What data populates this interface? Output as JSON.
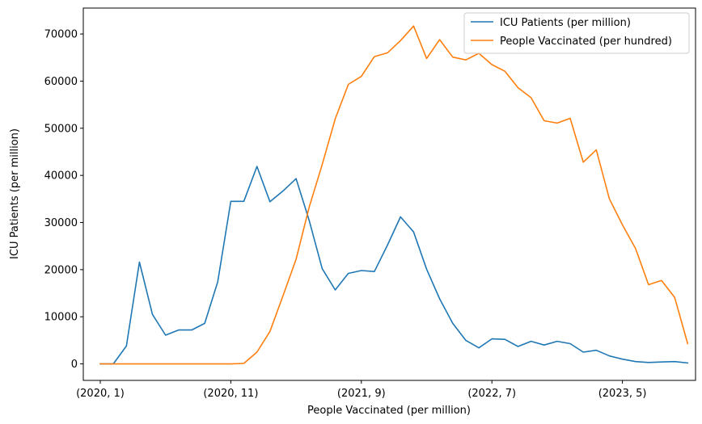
{
  "chart_data": {
    "type": "line",
    "xlabel": "People Vaccinated (per million)",
    "ylabel": "ICU Patients (per million)",
    "x_tick_labels": [
      "(2020, 1)",
      "(2020, 11)",
      "(2021, 9)",
      "(2022, 7)",
      "(2023, 5)"
    ],
    "x_tick_indices": [
      0,
      10,
      20,
      30,
      40
    ],
    "y_ticks": [
      0,
      10000,
      20000,
      30000,
      40000,
      50000,
      60000,
      70000
    ],
    "ylim": [
      -3500,
      75500
    ],
    "xlim": [
      -1.3,
      45.6
    ],
    "grid": false,
    "legend_position": "top-right",
    "series": [
      {
        "name": "ICU Patients (per million)",
        "color": "#1f77b4",
        "values": [
          0,
          0,
          3800,
          21600,
          10500,
          6100,
          7200,
          7200,
          8600,
          17400,
          34500,
          34500,
          41900,
          34400,
          36700,
          39300,
          30500,
          20200,
          15700,
          19200,
          19800,
          19600,
          25200,
          31200,
          28000,
          20100,
          13800,
          8600,
          5000,
          3400,
          5300,
          5200,
          3700,
          4800,
          4000,
          4800,
          4300,
          2500,
          2900,
          1700,
          1000,
          500,
          300,
          400,
          500,
          200
        ]
      },
      {
        "name": "People Vaccinated (per hundred)",
        "color": "#ff7f0e",
        "values": [
          0,
          0,
          0,
          0,
          0,
          0,
          0,
          0,
          0,
          0,
          0,
          100,
          2500,
          6900,
          14500,
          22200,
          33200,
          42300,
          52000,
          59300,
          61000,
          65200,
          66000,
          68600,
          71700,
          64800,
          68800,
          65100,
          64500,
          65900,
          63500,
          62100,
          58600,
          56500,
          51600,
          51100,
          52100,
          42800,
          45400,
          35000,
          29500,
          24500,
          16800,
          17700,
          14100,
          4300
        ]
      }
    ]
  }
}
